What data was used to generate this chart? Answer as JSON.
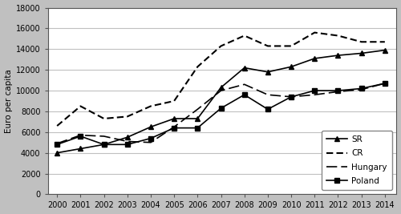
{
  "years": [
    2000,
    2001,
    2002,
    2003,
    2004,
    2005,
    2006,
    2007,
    2008,
    2009,
    2010,
    2011,
    2012,
    2013,
    2014
  ],
  "SR": [
    4000,
    4400,
    4800,
    5500,
    6500,
    7300,
    7300,
    10300,
    12200,
    11800,
    12300,
    13100,
    13400,
    13600,
    13900
  ],
  "CR": [
    6600,
    8500,
    7300,
    7500,
    8500,
    9000,
    12300,
    14300,
    15300,
    14300,
    14300,
    15600,
    15300,
    14700,
    14700
  ],
  "Hungary": [
    4900,
    5700,
    5600,
    5100,
    5000,
    6500,
    8200,
    10000,
    10600,
    9600,
    9400,
    9600,
    9900,
    10100,
    10700
  ],
  "Poland": [
    4800,
    5600,
    4800,
    4800,
    5400,
    6400,
    6400,
    8300,
    9600,
    8200,
    9400,
    10000,
    10000,
    10200,
    10700
  ],
  "ylabel": "Euro per capita",
  "ylim": [
    0,
    18000
  ],
  "yticks": [
    0,
    2000,
    4000,
    6000,
    8000,
    10000,
    12000,
    14000,
    16000,
    18000
  ],
  "fig_bg_color": "#c0c0c0",
  "plot_bg_color": "#ffffff",
  "grid_color": "#c0c0c0",
  "line_color": "#000000",
  "legend_labels": [
    "SR",
    "CR",
    "Hungary",
    "Poland"
  ]
}
